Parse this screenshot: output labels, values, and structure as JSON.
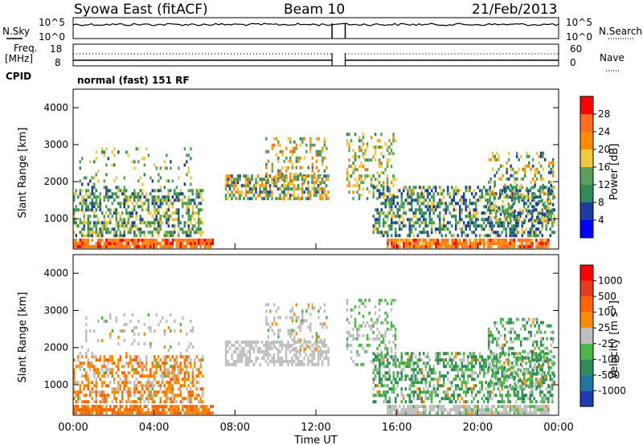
{
  "header": {
    "title": "Syowa East (fitACF)",
    "beam": "Beam 10",
    "date": "21/Feb/2013"
  },
  "top_panel": {
    "left_label": "N.Sky",
    "right_label": "N.Search",
    "left_ticks": [
      "10^5",
      "10^0"
    ],
    "right_ticks": [
      "10^5",
      "10^0"
    ]
  },
  "freq_panel": {
    "left_label_line1": "Freq.",
    "left_label_line2": "[MHz]",
    "right_label": "Nave",
    "left_ticks": [
      "18",
      "8"
    ],
    "right_ticks": [
      "60",
      "0"
    ]
  },
  "cpid": {
    "label": "CPID",
    "value": "normal (fast) 151 RF"
  },
  "colors": {
    "power_scale": [
      "#0000ff",
      "#1e3ca0",
      "#2e8b57",
      "#5aa05a",
      "#f0c83c",
      "#ff8c00",
      "#ff6e1e",
      "#ff0000"
    ],
    "velocity_scale": [
      "#1e3cb4",
      "#1e78a0",
      "#2e8b57",
      "#4ab848",
      "#bebebe",
      "#ff8c00",
      "#ff6400",
      "#e63c1e",
      "#ff0000"
    ]
  },
  "chart_data": [
    {
      "type": "heatmap",
      "name": "power-panel",
      "ylabel": "Slant Range [km]",
      "ylim": [
        180,
        4500
      ],
      "y_ticks": [
        "4000",
        "3000",
        "2000",
        "1000"
      ],
      "y_tick_values": [
        4000,
        3000,
        2000,
        1000
      ],
      "colorbar": {
        "label": "Power [dB]",
        "ticks": [
          "28",
          "24",
          "20",
          "16",
          "12",
          "8",
          "4"
        ],
        "tick_values": [
          28,
          24,
          20,
          16,
          12,
          8,
          4
        ],
        "range": [
          0,
          32
        ]
      }
    },
    {
      "type": "heatmap",
      "name": "velocity-panel",
      "ylabel": "Slant Range [km]",
      "ylim": [
        180,
        4500
      ],
      "y_ticks": [
        "4000",
        "3000",
        "2000",
        "1000"
      ],
      "y_tick_values": [
        4000,
        3000,
        2000,
        1000
      ],
      "xlabel": "Time UT",
      "x_ticks": [
        "00:00",
        "04:00",
        "08:00",
        "12:00",
        "16:00",
        "20:00",
        "00:00"
      ],
      "x_tick_hours": [
        0,
        4,
        8,
        12,
        16,
        20,
        24
      ],
      "data_gap_hours": [
        12.8,
        13.45
      ],
      "colorbar": {
        "label": "Velocity [m s",
        "label_superscript": "-1",
        "label_close": "]",
        "ticks": [
          "1000",
          "500",
          "100",
          "25",
          "-25",
          "-100",
          "-500",
          "-1000"
        ]
      }
    }
  ]
}
